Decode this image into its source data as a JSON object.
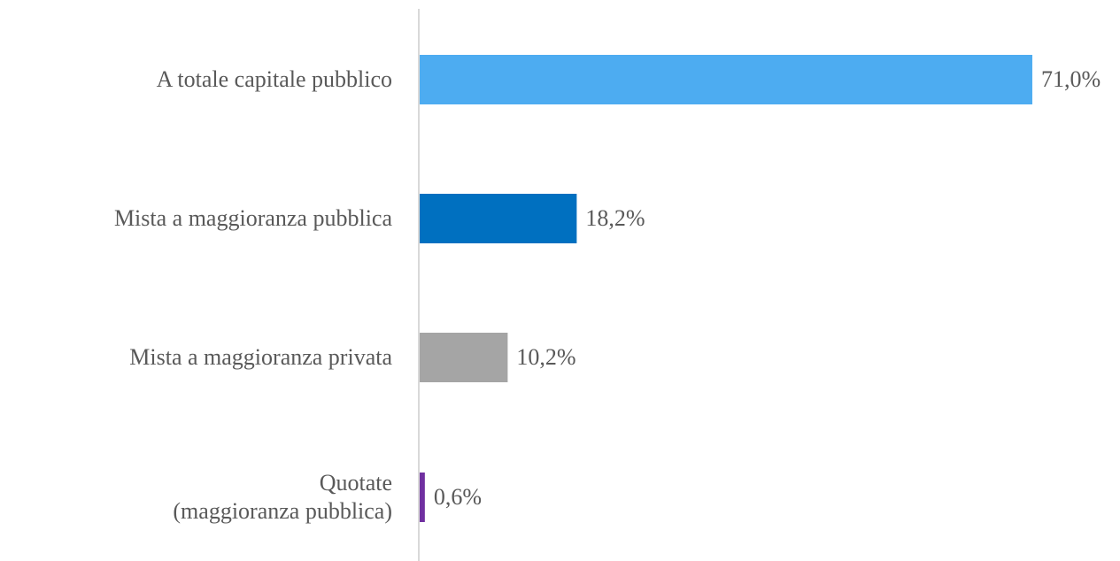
{
  "chart_data": {
    "type": "bar",
    "orientation": "horizontal",
    "categories": [
      "A totale capitale pubblico",
      "Mista a maggioranza pubblica",
      "Mista a maggioranza privata",
      "Quotate\n(maggioranza pubblica)"
    ],
    "values": [
      71.0,
      18.2,
      10.2,
      0.6
    ],
    "value_labels": [
      "71,0%",
      "18,2%",
      "10,2%",
      "0,6%"
    ],
    "colors": [
      "#4dacf1",
      "#0070c0",
      "#a5a5a5",
      "#7030a0"
    ]
  }
}
